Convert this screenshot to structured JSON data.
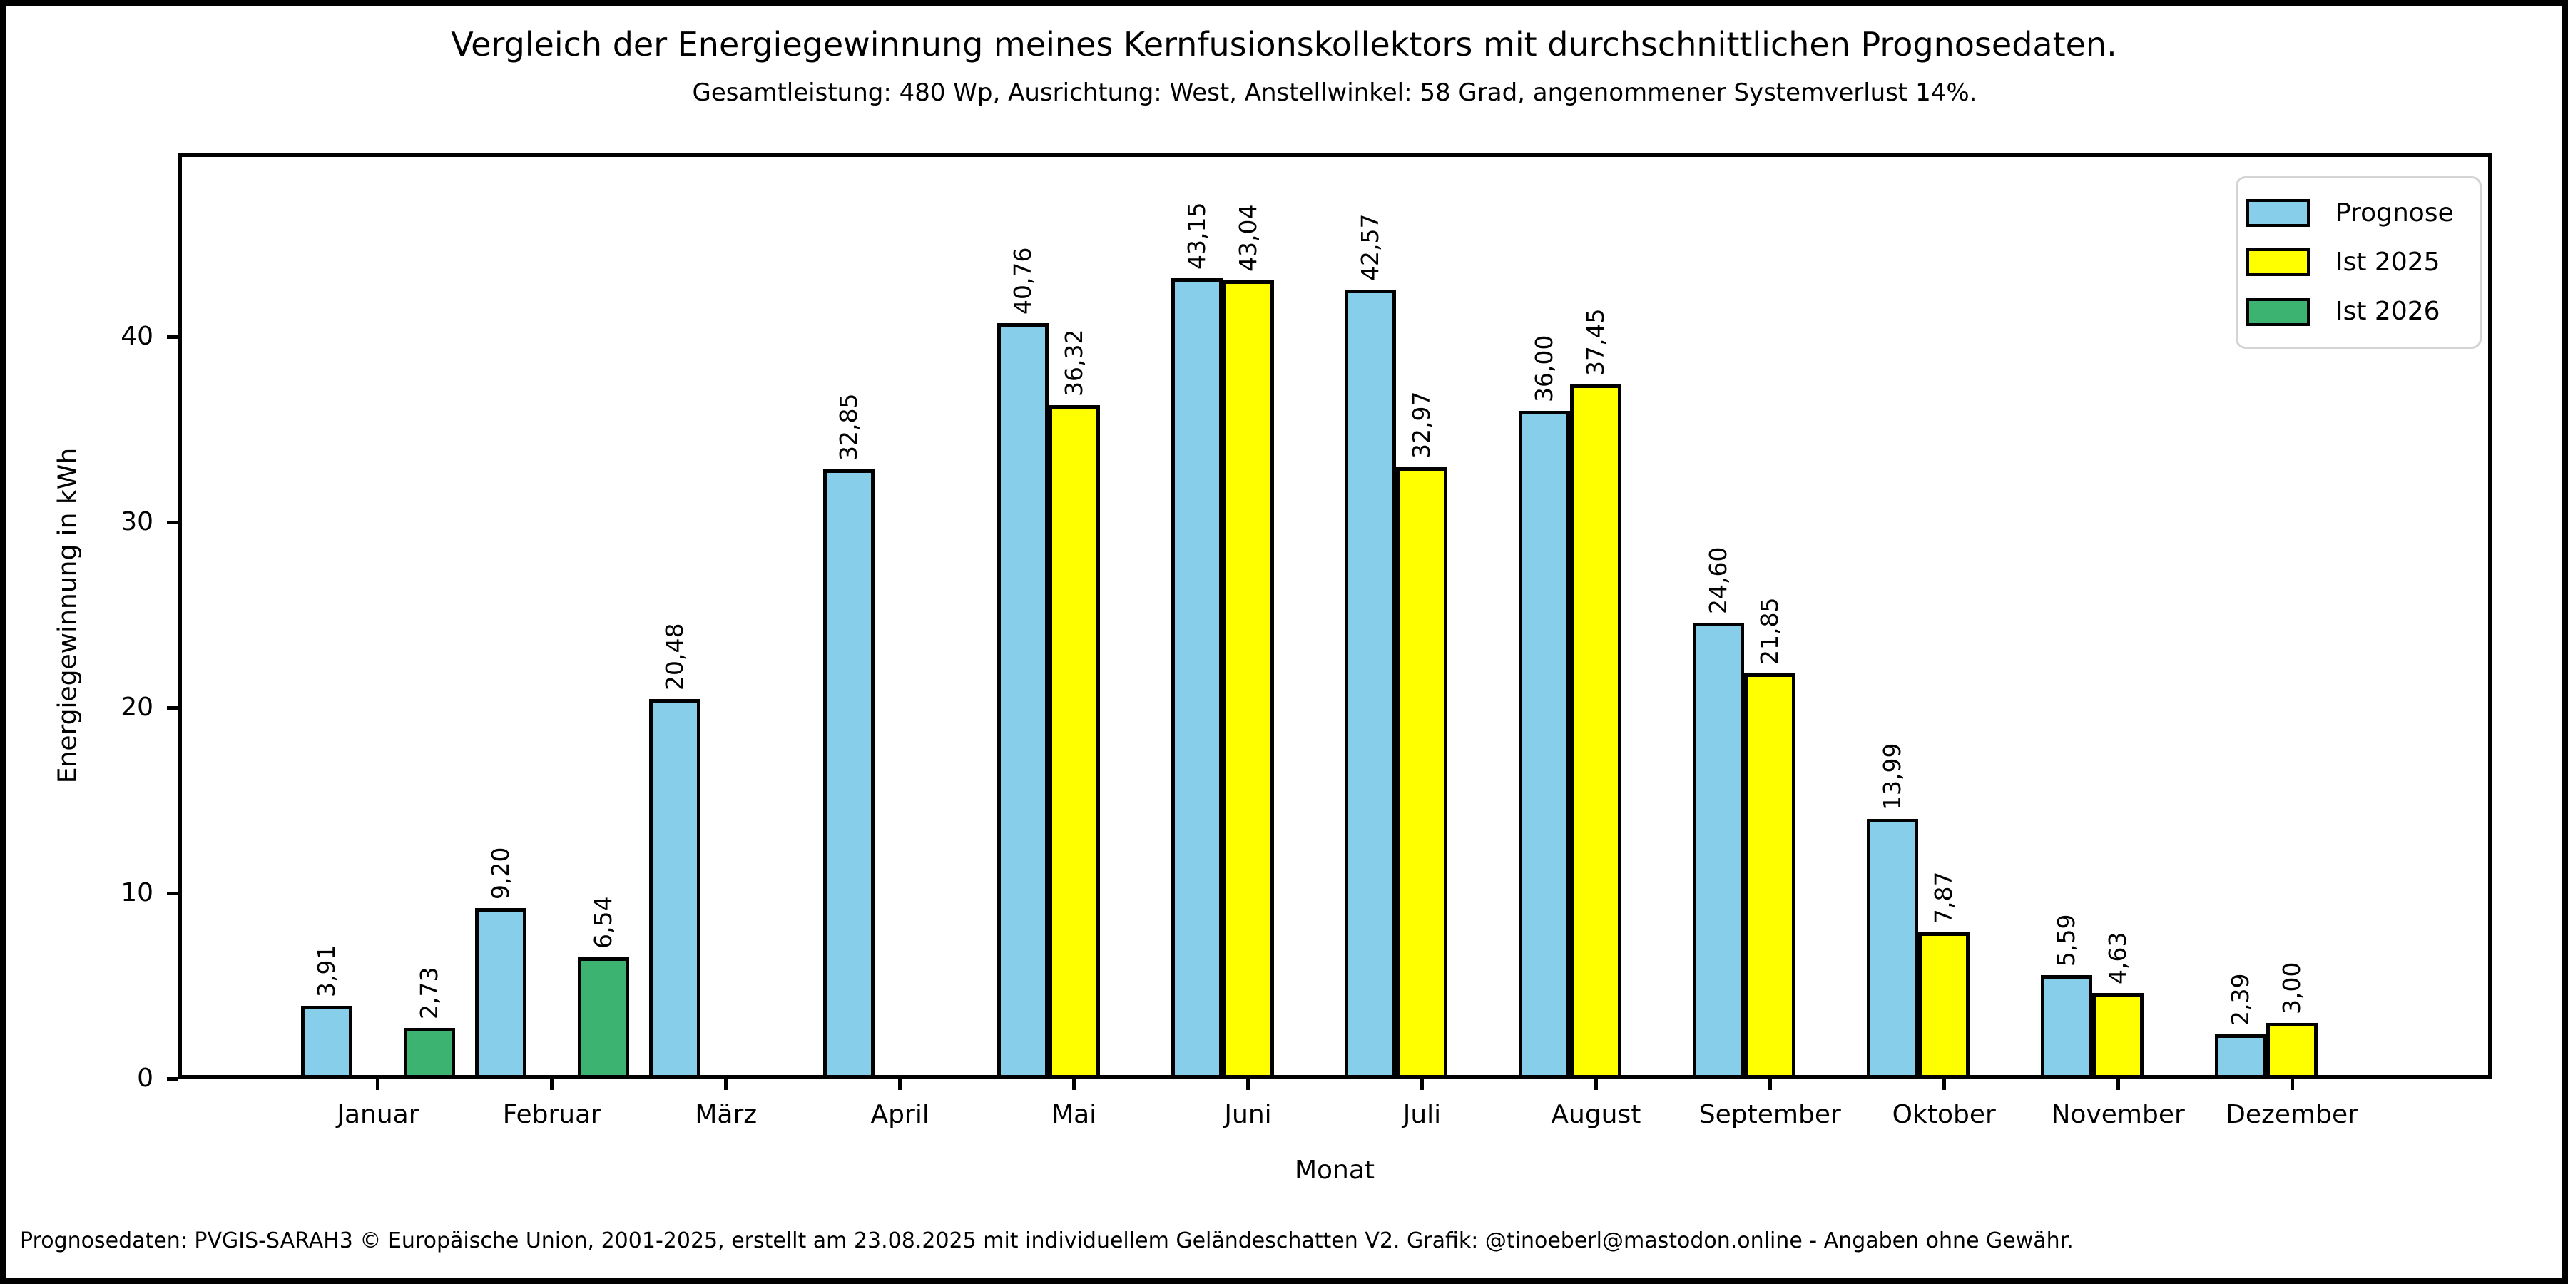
{
  "title": "Vergleich der Energiegewinnung meines Kernfusionskollektors mit durchschnittlichen Prognosedaten.",
  "subtitle": "Gesamtleistung: 480 Wp, Ausrichtung: West, Anstellwinkel: 58 Grad, angenommener Systemverlust 14%.",
  "footer": "Prognosedaten: PVGIS-SARAH3 © Europäische Union, 2001-2025, erstellt am 23.08.2025 mit individuellem Geländeschatten V2. Grafik: @tinoeberl@mastodon.online - Angaben ohne Gewähr.",
  "colors": {
    "prognose": "#87CEEB",
    "ist2025": "#FFFF00",
    "ist2026": "#3CB371",
    "bar_edge": "#000000",
    "legend_border": "#d4d4d4",
    "background": "#ffffff"
  },
  "chart_data": {
    "type": "bar",
    "title": "Vergleich der Energiegewinnung meines Kernfusionskollektors mit durchschnittlichen Prognosedaten.",
    "subtitle": "Gesamtleistung: 480 Wp, Ausrichtung: West, Anstellwinkel: 58 Grad, angenommener Systemverlust 14%.",
    "xlabel": "Monat",
    "ylabel": "Energiegewinnung in kWh",
    "ylim": [
      0,
      49.9
    ],
    "yticks": [
      0,
      10,
      20,
      30,
      40
    ],
    "grid": false,
    "legend_position": "upper right",
    "value_label_rotation": 90,
    "decimal_separator": ",",
    "categories": [
      "Januar",
      "Februar",
      "März",
      "April",
      "Mai",
      "Juni",
      "Juli",
      "August",
      "September",
      "Oktober",
      "November",
      "Dezember"
    ],
    "series": [
      {
        "name": "Prognose",
        "color": "#87CEEB",
        "values": [
          3.91,
          9.2,
          20.48,
          32.85,
          40.76,
          43.15,
          42.57,
          36.0,
          24.6,
          13.99,
          5.59,
          2.39
        ],
        "labels": [
          "3,91",
          "9,20",
          "20,48",
          "32,85",
          "40,76",
          "43,15",
          "42,57",
          "36,00",
          "24,60",
          "13,99",
          "5,59",
          "2,39"
        ]
      },
      {
        "name": "Ist 2025",
        "color": "#FFFF00",
        "values": [
          null,
          null,
          null,
          null,
          36.32,
          43.04,
          32.97,
          37.45,
          21.85,
          7.87,
          4.63,
          3.0
        ],
        "labels": [
          null,
          null,
          null,
          null,
          "36,32",
          "43,04",
          "32,97",
          "37,45",
          "21,85",
          "7,87",
          "4,63",
          "3,00"
        ]
      },
      {
        "name": "Ist 2026",
        "color": "#3CB371",
        "values": [
          2.73,
          6.54,
          null,
          null,
          null,
          null,
          null,
          null,
          null,
          null,
          null,
          null
        ],
        "labels": [
          "2,73",
          "6,54",
          null,
          null,
          null,
          null,
          null,
          null,
          null,
          null,
          null,
          null
        ]
      }
    ]
  }
}
